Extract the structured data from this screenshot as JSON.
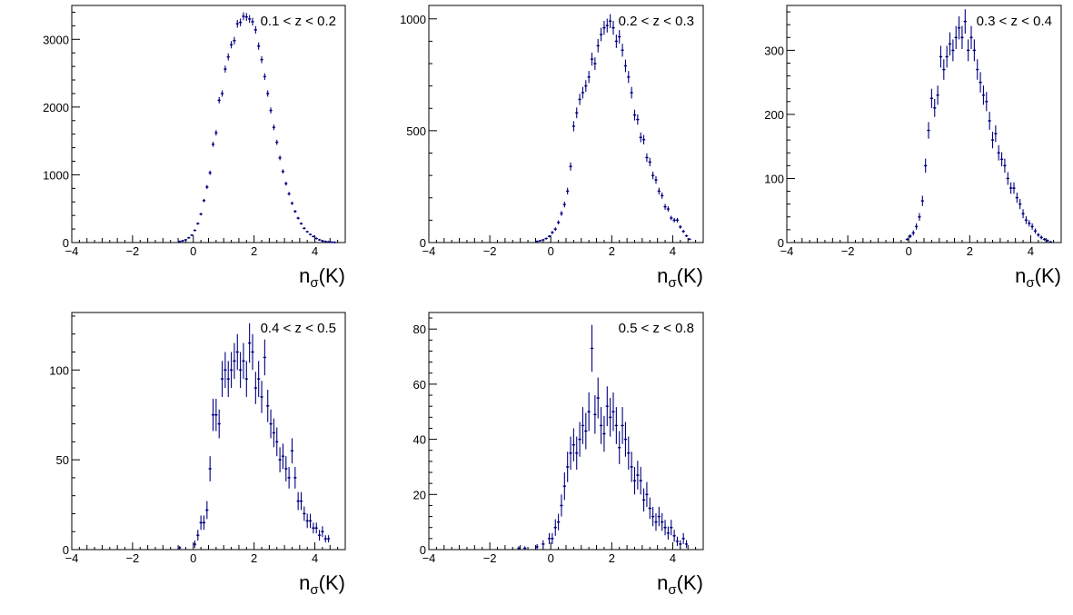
{
  "figure": {
    "marker_color": "#00007f",
    "axis_color": "#000000",
    "background": "#ffffff"
  },
  "chart_data": [
    {
      "type": "scatter",
      "title": "0.1 < z < 0.2",
      "xlabel": "nσ(K)",
      "xlabel_main": "n",
      "xlabel_sub": "σ",
      "xlabel_rest": "(K)",
      "xlim": [
        -4,
        5
      ],
      "ylim": [
        0,
        3500
      ],
      "xticks": [
        -4,
        -2,
        0,
        2,
        4
      ],
      "xtick_labels": [
        "−4",
        "−2",
        "0",
        "2",
        "4"
      ],
      "yticks": [
        0,
        1000,
        2000,
        3000
      ],
      "ytick_labels": [
        "0",
        "1000",
        "2000",
        "3000"
      ],
      "x": [
        -0.45,
        -0.35,
        -0.25,
        -0.15,
        -0.05,
        0.05,
        0.15,
        0.25,
        0.35,
        0.45,
        0.55,
        0.65,
        0.75,
        0.85,
        0.95,
        1.05,
        1.15,
        1.25,
        1.35,
        1.45,
        1.55,
        1.65,
        1.75,
        1.85,
        1.95,
        2.05,
        2.15,
        2.25,
        2.35,
        2.45,
        2.55,
        2.65,
        2.75,
        2.85,
        2.95,
        3.05,
        3.15,
        3.25,
        3.35,
        3.45,
        3.55,
        3.65,
        3.75,
        3.85,
        3.95,
        4.05,
        4.15,
        4.25,
        4.35,
        4.45,
        4.55,
        4.65
      ],
      "y": [
        15,
        25,
        40,
        70,
        110,
        180,
        280,
        420,
        620,
        820,
        1030,
        1450,
        1620,
        2100,
        2200,
        2560,
        2740,
        2920,
        2980,
        3230,
        3250,
        3340,
        3330,
        3300,
        3260,
        3140,
        2900,
        2700,
        2450,
        2200,
        1950,
        1700,
        1480,
        1250,
        1050,
        870,
        720,
        580,
        460,
        360,
        280,
        210,
        160,
        120,
        90,
        60,
        40,
        25,
        15,
        10,
        6,
        3
      ],
      "yerr": [
        4,
        5,
        6,
        8,
        10,
        13,
        17,
        20,
        25,
        29,
        32,
        38,
        40,
        46,
        47,
        51,
        52,
        54,
        55,
        57,
        57,
        58,
        58,
        57,
        57,
        56,
        54,
        52,
        49,
        47,
        44,
        41,
        38,
        35,
        32,
        29,
        27,
        24,
        21,
        19,
        17,
        14,
        13,
        11,
        9,
        8,
        6,
        5,
        4,
        3,
        2,
        2
      ]
    },
    {
      "type": "scatter",
      "title": "0.2 < z < 0.3",
      "xlabel": "nσ(K)",
      "xlabel_main": "n",
      "xlabel_sub": "σ",
      "xlabel_rest": "(K)",
      "xlim": [
        -4,
        5
      ],
      "ylim": [
        0,
        1060
      ],
      "xticks": [
        -4,
        -2,
        0,
        2,
        4
      ],
      "xtick_labels": [
        "−4",
        "−2",
        "0",
        "2",
        "4"
      ],
      "yticks": [
        0,
        500,
        1000
      ],
      "ytick_labels": [
        "0",
        "500",
        "1000"
      ],
      "x": [
        -0.45,
        -0.35,
        -0.25,
        -0.15,
        -0.05,
        0.05,
        0.15,
        0.25,
        0.35,
        0.45,
        0.55,
        0.65,
        0.75,
        0.85,
        0.95,
        1.05,
        1.15,
        1.25,
        1.35,
        1.45,
        1.55,
        1.65,
        1.75,
        1.85,
        1.95,
        2.05,
        2.15,
        2.25,
        2.35,
        2.45,
        2.55,
        2.65,
        2.75,
        2.85,
        2.95,
        3.05,
        3.15,
        3.25,
        3.35,
        3.45,
        3.55,
        3.65,
        3.75,
        3.85,
        3.95,
        4.05,
        4.15,
        4.25,
        4.35,
        4.45,
        4.55
      ],
      "y": [
        5,
        8,
        12,
        18,
        28,
        45,
        60,
        90,
        130,
        170,
        230,
        340,
        520,
        580,
        640,
        670,
        700,
        740,
        820,
        800,
        880,
        930,
        960,
        970,
        990,
        960,
        900,
        920,
        860,
        790,
        740,
        670,
        570,
        550,
        470,
        460,
        380,
        360,
        300,
        280,
        230,
        210,
        160,
        150,
        110,
        100,
        100,
        70,
        50,
        30,
        15
      ],
      "yerr": [
        2,
        3,
        3,
        4,
        5,
        7,
        8,
        9,
        11,
        13,
        15,
        18,
        23,
        24,
        25,
        26,
        26,
        27,
        29,
        28,
        30,
        30,
        31,
        31,
        31,
        31,
        30,
        30,
        29,
        28,
        27,
        26,
        24,
        23,
        22,
        21,
        19,
        19,
        17,
        17,
        15,
        14,
        13,
        12,
        10,
        10,
        10,
        8,
        7,
        5,
        4
      ]
    },
    {
      "type": "scatter",
      "title": "0.3 < z < 0.4",
      "xlabel": "nσ(K)",
      "xlabel_main": "n",
      "xlabel_sub": "σ",
      "xlabel_rest": "(K)",
      "xlim": [
        -4,
        5
      ],
      "ylim": [
        0,
        370
      ],
      "xticks": [
        -4,
        -2,
        0,
        2,
        4
      ],
      "xtick_labels": [
        "−4",
        "−2",
        "0",
        "2",
        "4"
      ],
      "yticks": [
        0,
        100,
        200,
        300
      ],
      "ytick_labels": [
        "0",
        "100",
        "200",
        "300"
      ],
      "x": [
        -0.05,
        0.05,
        0.15,
        0.25,
        0.35,
        0.45,
        0.55,
        0.65,
        0.75,
        0.85,
        0.95,
        1.05,
        1.15,
        1.25,
        1.35,
        1.45,
        1.55,
        1.65,
        1.75,
        1.85,
        1.95,
        2.05,
        2.15,
        2.25,
        2.35,
        2.45,
        2.55,
        2.65,
        2.75,
        2.85,
        2.95,
        3.05,
        3.15,
        3.25,
        3.35,
        3.45,
        3.55,
        3.65,
        3.75,
        3.85,
        3.95,
        4.05,
        4.15,
        4.25,
        4.35,
        4.45,
        4.55,
        4.65
      ],
      "y": [
        5,
        10,
        15,
        25,
        40,
        65,
        120,
        175,
        225,
        210,
        230,
        290,
        270,
        290,
        310,
        300,
        320,
        335,
        320,
        345,
        300,
        320,
        300,
        270,
        250,
        230,
        220,
        190,
        160,
        170,
        140,
        130,
        120,
        100,
        85,
        85,
        70,
        60,
        45,
        35,
        30,
        25,
        18,
        12,
        8,
        5,
        3,
        1
      ],
      "yerr": [
        2,
        3,
        4,
        5,
        6,
        8,
        11,
        13,
        15,
        14,
        15,
        17,
        16,
        17,
        18,
        17,
        18,
        18,
        18,
        19,
        17,
        18,
        17,
        16,
        16,
        15,
        15,
        14,
        13,
        13,
        12,
        11,
        11,
        10,
        9,
        9,
        8,
        8,
        7,
        6,
        5,
        5,
        4,
        3,
        3,
        2,
        2,
        1
      ]
    },
    {
      "type": "scatter",
      "title": "0.4 < z < 0.5",
      "xlabel": "nσ(K)",
      "xlabel_main": "n",
      "xlabel_sub": "σ",
      "xlabel_rest": "(K)",
      "xlim": [
        -4,
        5
      ],
      "ylim": [
        0,
        132
      ],
      "xticks": [
        -4,
        -2,
        0,
        2,
        4
      ],
      "xtick_labels": [
        "−4",
        "−2",
        "0",
        "2",
        "4"
      ],
      "yticks": [
        0,
        50,
        100
      ],
      "ytick_labels": [
        "0",
        "50",
        "100"
      ],
      "x": [
        -0.45,
        0.05,
        0.15,
        0.25,
        0.35,
        0.45,
        0.55,
        0.65,
        0.75,
        0.85,
        0.95,
        1.05,
        1.15,
        1.25,
        1.35,
        1.45,
        1.55,
        1.65,
        1.75,
        1.85,
        1.95,
        2.05,
        2.15,
        2.25,
        2.35,
        2.45,
        2.55,
        2.65,
        2.75,
        2.85,
        2.95,
        3.05,
        3.15,
        3.25,
        3.35,
        3.45,
        3.55,
        3.65,
        3.75,
        3.85,
        3.95,
        4.05,
        4.15,
        4.25,
        4.35,
        4.45
      ],
      "y": [
        1,
        3,
        8,
        15,
        15,
        22,
        45,
        75,
        75,
        70,
        95,
        100,
        95,
        100,
        105,
        110,
        100,
        105,
        95,
        115,
        110,
        90,
        95,
        85,
        107,
        80,
        70,
        65,
        60,
        50,
        52,
        45,
        40,
        55,
        40,
        27,
        27,
        20,
        16,
        16,
        12,
        12,
        8,
        10,
        6,
        6
      ],
      "yerr": [
        1,
        2,
        3,
        4,
        4,
        5,
        7,
        9,
        9,
        8,
        10,
        10,
        10,
        10,
        10,
        10,
        10,
        10,
        10,
        11,
        10,
        9,
        10,
        9,
        10,
        9,
        8,
        8,
        8,
        7,
        7,
        7,
        6,
        7,
        6,
        5,
        5,
        4,
        4,
        4,
        3,
        3,
        3,
        3,
        2,
        2
      ]
    },
    {
      "type": "scatter",
      "title": "0.5 < z < 0.8",
      "xlabel": "nσ(K)",
      "xlabel_main": "n",
      "xlabel_sub": "σ",
      "xlabel_rest": "(K)",
      "xlim": [
        -4,
        5
      ],
      "ylim": [
        0,
        86
      ],
      "xticks": [
        -4,
        -2,
        0,
        2,
        4
      ],
      "xtick_labels": [
        "−4",
        "−2",
        "0",
        "2",
        "4"
      ],
      "yticks": [
        0,
        20,
        40,
        60,
        80
      ],
      "ytick_labels": [
        "0",
        "20",
        "40",
        "60",
        "80"
      ],
      "x": [
        -1.05,
        -0.85,
        -0.45,
        -0.25,
        -0.05,
        0.05,
        0.15,
        0.25,
        0.35,
        0.45,
        0.55,
        0.65,
        0.75,
        0.85,
        0.95,
        1.05,
        1.15,
        1.25,
        1.35,
        1.45,
        1.55,
        1.65,
        1.75,
        1.85,
        1.95,
        2.05,
        2.15,
        2.25,
        2.35,
        2.45,
        2.55,
        2.65,
        2.75,
        2.85,
        2.95,
        3.05,
        3.15,
        3.25,
        3.35,
        3.45,
        3.55,
        3.65,
        3.75,
        3.85,
        3.95,
        4.05,
        4.15,
        4.25,
        4.35,
        4.45
      ],
      "y": [
        0.5,
        0.5,
        1,
        2,
        4,
        4,
        8,
        10,
        16,
        23,
        30,
        35,
        38,
        35,
        40,
        45,
        43,
        50,
        73,
        49,
        55,
        45,
        42,
        52,
        48,
        50,
        45,
        37,
        45,
        40,
        35,
        30,
        25,
        27,
        25,
        18,
        20,
        15,
        12,
        10,
        12,
        10,
        8,
        6,
        8,
        5,
        3,
        2,
        4,
        2
      ],
      "yerr": [
        0.7,
        0.7,
        1,
        1.4,
        2,
        2,
        3,
        3,
        4,
        5,
        5.5,
        6,
        6,
        6,
        6.3,
        6.7,
        6.6,
        7,
        8.5,
        7,
        7.4,
        6.7,
        6.5,
        7.2,
        7,
        7,
        6.7,
        6,
        6.7,
        6.3,
        6,
        5.5,
        5,
        5.2,
        5,
        4.2,
        4.5,
        3.9,
        3.5,
        3.2,
        3.5,
        3.2,
        2.8,
        2.4,
        2.8,
        2.2,
        1.7,
        1.4,
        2,
        1.4
      ]
    }
  ]
}
